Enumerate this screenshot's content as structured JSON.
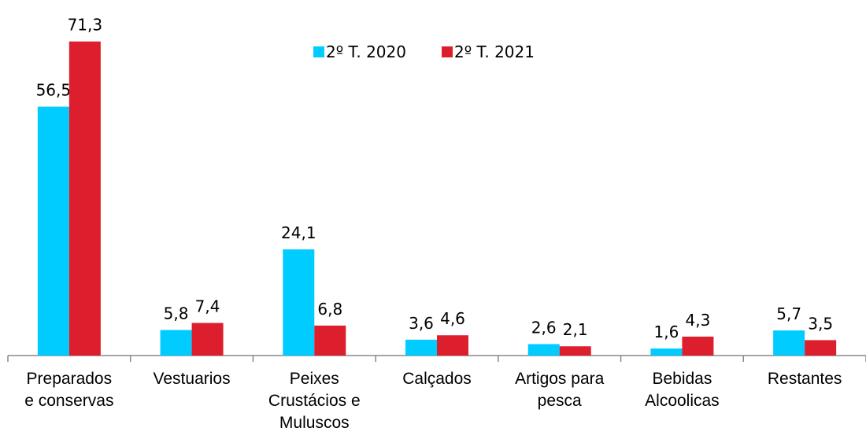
{
  "chart_data": {
    "type": "bar",
    "categories": [
      "Preparados e conservas",
      "Vestuarios",
      "Peixes Crustácios e Muluscos",
      "Calçados",
      "Artigos para pesca",
      "Bebidas Alcoolicas",
      "Restantes"
    ],
    "series": [
      {
        "name": "2º T. 2020",
        "color": "#00ccff",
        "values": [
          56.5,
          5.8,
          24.1,
          3.6,
          2.6,
          1.6,
          5.7
        ],
        "value_labels": [
          "56,5",
          "5,8",
          "24,1",
          "3,6",
          "2,6",
          "1,6",
          "5,7"
        ]
      },
      {
        "name": "2º T. 2021",
        "color": "#dc1e2d",
        "values": [
          71.3,
          7.4,
          6.8,
          4.6,
          2.1,
          4.3,
          3.5
        ],
        "value_labels": [
          "71,3",
          "7,4",
          "6,8",
          "4,6",
          "2,1",
          "4,3",
          "3,5"
        ]
      }
    ],
    "ylim": [
      0,
      80
    ],
    "legend": "top"
  }
}
